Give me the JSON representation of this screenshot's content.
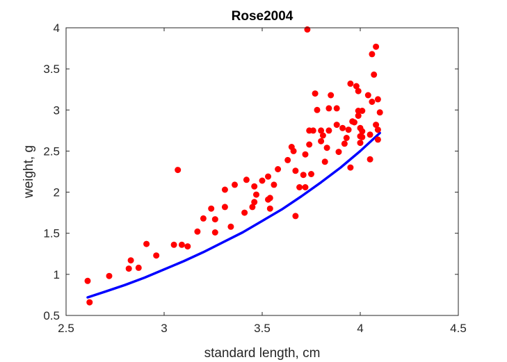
{
  "chart_data": {
    "type": "scatter",
    "title": "Rose2004",
    "xlabel": "standard length, cm",
    "ylabel": "weight, g",
    "xlim": [
      2.5,
      4.5
    ],
    "ylim": [
      0.5,
      4
    ],
    "x_ticks": [
      "2.5",
      "3",
      "3.5",
      "4",
      "4.5"
    ],
    "y_ticks": [
      "0.5",
      "1",
      "1.5",
      "2",
      "2.5",
      "3",
      "3.5",
      "4"
    ],
    "grid": false,
    "colors": {
      "points": "#ff0000",
      "curve": "#0000ff",
      "axes": "#262626"
    },
    "series": [
      {
        "type": "scatter",
        "color": "#ff0000",
        "points": [
          [
            2.61,
            0.92
          ],
          [
            2.62,
            0.66
          ],
          [
            2.72,
            0.98
          ],
          [
            2.82,
            1.07
          ],
          [
            2.83,
            1.17
          ],
          [
            2.87,
            1.08
          ],
          [
            2.91,
            1.37
          ],
          [
            2.96,
            1.23
          ],
          [
            3.05,
            1.36
          ],
          [
            3.07,
            2.27
          ],
          [
            3.09,
            1.36
          ],
          [
            3.12,
            1.34
          ],
          [
            3.17,
            1.52
          ],
          [
            3.2,
            1.68
          ],
          [
            3.24,
            1.8
          ],
          [
            3.26,
            1.51
          ],
          [
            3.26,
            1.67
          ],
          [
            3.31,
            1.82
          ],
          [
            3.31,
            2.03
          ],
          [
            3.34,
            1.58
          ],
          [
            3.36,
            2.09
          ],
          [
            3.41,
            1.75
          ],
          [
            3.42,
            2.15
          ],
          [
            3.45,
            1.82
          ],
          [
            3.46,
            1.88
          ],
          [
            3.46,
            2.07
          ],
          [
            3.47,
            1.97
          ],
          [
            3.5,
            2.14
          ],
          [
            3.53,
            1.91
          ],
          [
            3.53,
            2.19
          ],
          [
            3.54,
            1.8
          ],
          [
            3.54,
            1.93
          ],
          [
            3.56,
            2.09
          ],
          [
            3.58,
            2.28
          ],
          [
            3.63,
            2.39
          ],
          [
            3.65,
            2.55
          ],
          [
            3.66,
            2.5
          ],
          [
            3.67,
            1.71
          ],
          [
            3.67,
            2.26
          ],
          [
            3.69,
            2.06
          ],
          [
            3.71,
            2.21
          ],
          [
            3.72,
            2.46
          ],
          [
            3.72,
            2.06
          ],
          [
            3.73,
            3.98
          ],
          [
            3.74,
            2.75
          ],
          [
            3.74,
            2.58
          ],
          [
            3.75,
            2.22
          ],
          [
            3.76,
            2.75
          ],
          [
            3.77,
            3.2
          ],
          [
            3.78,
            3.0
          ],
          [
            3.8,
            2.62
          ],
          [
            3.8,
            2.75
          ],
          [
            3.81,
            2.69
          ],
          [
            3.82,
            2.37
          ],
          [
            3.83,
            2.54
          ],
          [
            3.84,
            2.75
          ],
          [
            3.84,
            3.02
          ],
          [
            3.85,
            3.18
          ],
          [
            3.88,
            3.02
          ],
          [
            3.88,
            2.82
          ],
          [
            3.89,
            2.49
          ],
          [
            3.91,
            2.78
          ],
          [
            3.92,
            2.59
          ],
          [
            3.93,
            2.66
          ],
          [
            3.94,
            2.76
          ],
          [
            3.95,
            3.32
          ],
          [
            3.95,
            2.3
          ],
          [
            3.96,
            2.86
          ],
          [
            3.97,
            2.85
          ],
          [
            3.98,
            3.29
          ],
          [
            3.99,
            3.23
          ],
          [
            3.99,
            2.99
          ],
          [
            3.99,
            2.93
          ],
          [
            4.0,
            2.6
          ],
          [
            4.0,
            2.78
          ],
          [
            4.0,
            2.68
          ],
          [
            4.01,
            2.74
          ],
          [
            4.01,
            2.67
          ],
          [
            4.01,
            2.99
          ],
          [
            4.04,
            3.18
          ],
          [
            4.05,
            2.7
          ],
          [
            4.05,
            2.4
          ],
          [
            4.06,
            3.68
          ],
          [
            4.06,
            3.1
          ],
          [
            4.07,
            3.43
          ],
          [
            4.08,
            3.77
          ],
          [
            4.08,
            2.82
          ],
          [
            4.09,
            2.76
          ],
          [
            4.09,
            2.64
          ],
          [
            4.09,
            3.13
          ],
          [
            4.1,
            2.97
          ]
        ]
      },
      {
        "type": "line",
        "color": "#0000ff",
        "points": [
          [
            2.61,
            0.72
          ],
          [
            2.7,
            0.79
          ],
          [
            2.8,
            0.87
          ],
          [
            2.9,
            0.96
          ],
          [
            3.0,
            1.06
          ],
          [
            3.1,
            1.16
          ],
          [
            3.2,
            1.27
          ],
          [
            3.3,
            1.39
          ],
          [
            3.4,
            1.51
          ],
          [
            3.5,
            1.65
          ],
          [
            3.6,
            1.79
          ],
          [
            3.7,
            1.95
          ],
          [
            3.8,
            2.12
          ],
          [
            3.9,
            2.3
          ],
          [
            4.0,
            2.5
          ],
          [
            4.1,
            2.72
          ]
        ]
      }
    ]
  }
}
